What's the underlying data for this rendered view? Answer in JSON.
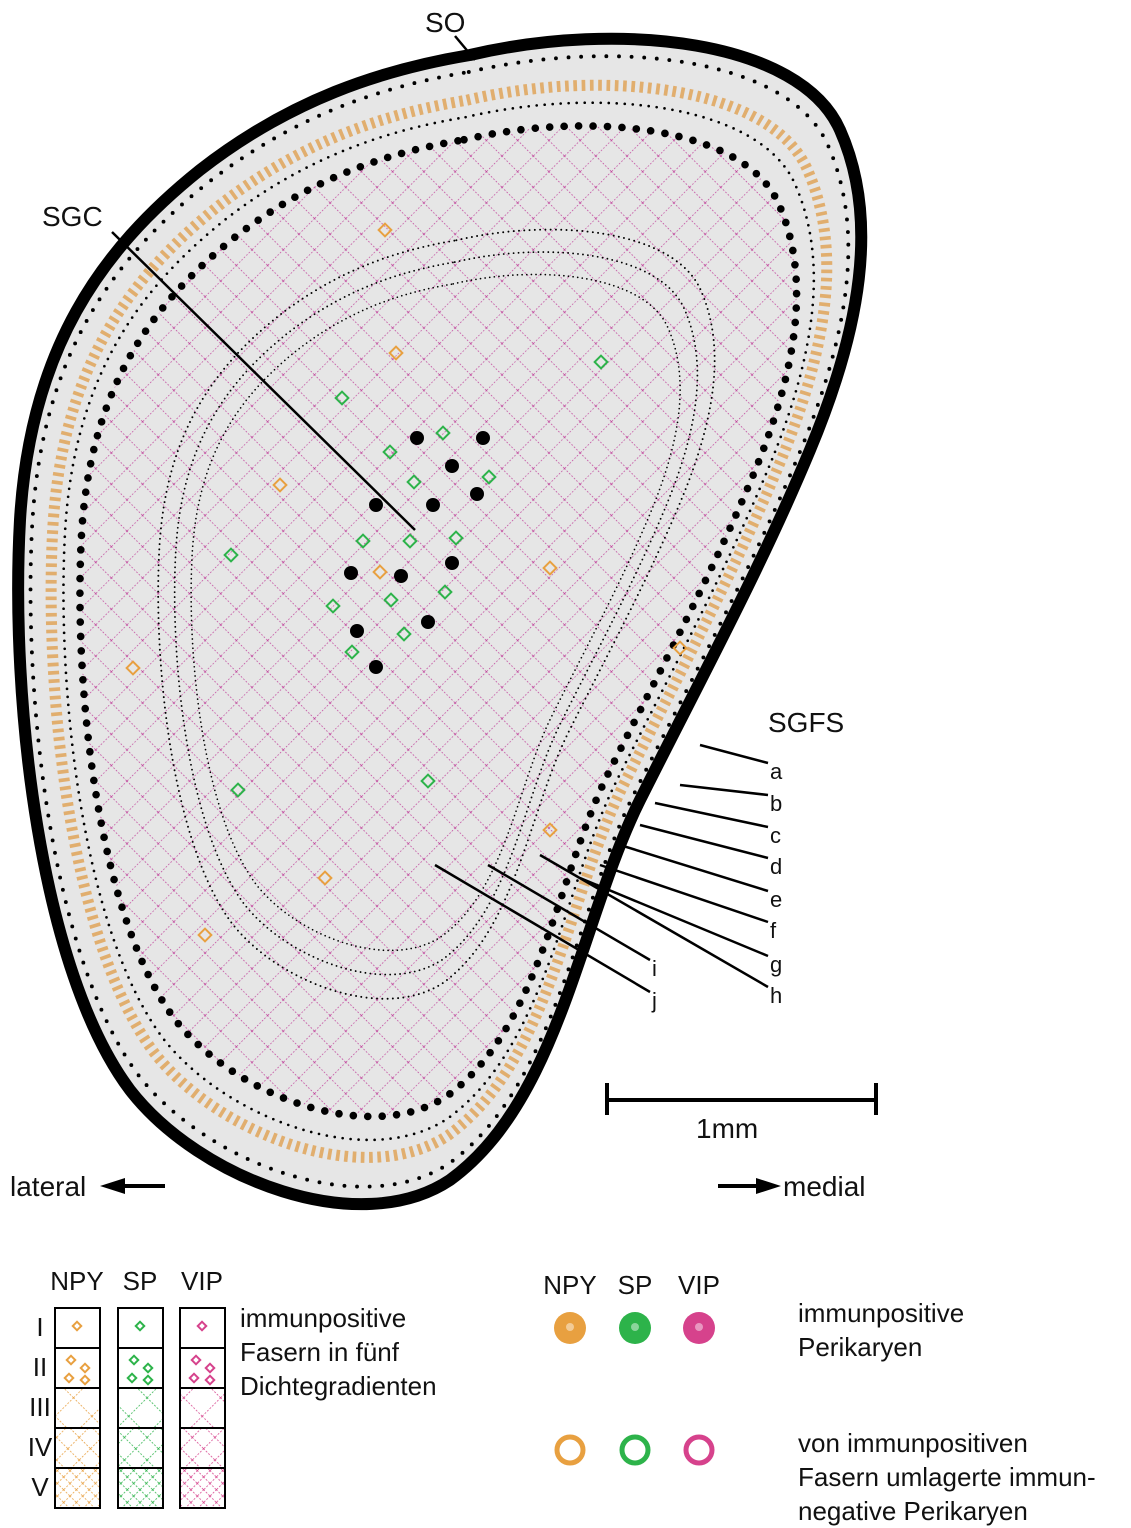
{
  "labels": {
    "so": "SO",
    "sgc": "SGC",
    "sgfs": "SGFS",
    "sublayers": [
      "a",
      "b",
      "c",
      "d",
      "e",
      "f",
      "g",
      "h",
      "i",
      "j"
    ]
  },
  "scale_bar": "1mm",
  "orientation": {
    "lateral": "lateral",
    "medial": "medial"
  },
  "legend_fibers": {
    "columns": [
      "NPY",
      "SP",
      "VIP"
    ],
    "rows": [
      "I",
      "II",
      "III",
      "IV",
      "V"
    ],
    "text": [
      "immunpositive",
      "Fasern in fünf",
      "Dichtegradienten"
    ]
  },
  "legend_cells": {
    "columns": [
      "NPY",
      "SP",
      "VIP"
    ],
    "filled_text": [
      "immunpositive",
      "Perikaryen"
    ],
    "ring_text": [
      "von immunpositiven",
      "Fasern umlagerte immun-",
      "negative Perikaryen"
    ]
  }
}
